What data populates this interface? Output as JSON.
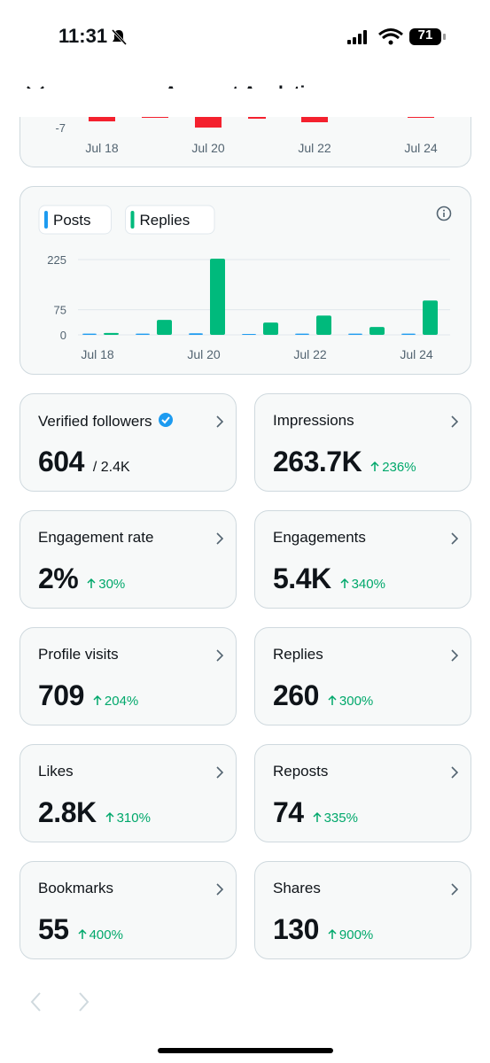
{
  "status_bar": {
    "time": "11:31",
    "battery": "71"
  },
  "header": {
    "title": "Account Analytics"
  },
  "top_chart": {
    "yticks": [
      -7
    ],
    "categories": [
      "Jul 18",
      "Jul 20",
      "Jul 22",
      "Jul 24"
    ]
  },
  "chart_data": {
    "type": "bar",
    "categories": [
      "Jul 18",
      null,
      "Jul 20",
      null,
      "Jul 22",
      null,
      "Jul 24"
    ],
    "series": [
      {
        "name": "Posts",
        "color": "#1d9bf0",
        "values": [
          1,
          1,
          2,
          0,
          1,
          1,
          1
        ]
      },
      {
        "name": "Replies",
        "color": "#00ba7c",
        "values": [
          3,
          42,
          225,
          34,
          55,
          21,
          100
        ]
      }
    ],
    "ylim": [
      0,
      225
    ],
    "yticks": [
      0,
      75,
      225
    ],
    "grid": true
  },
  "metrics": [
    {
      "label": "Verified followers",
      "value": "604",
      "total": "/ 2.4K"
    },
    {
      "label": "Impressions",
      "value": "263.7K",
      "change": "236%"
    },
    {
      "label": "Engagement rate",
      "value": "2%",
      "change": "30%"
    },
    {
      "label": "Engagements",
      "value": "5.4K",
      "change": "340%"
    },
    {
      "label": "Profile visits",
      "value": "709",
      "change": "204%"
    },
    {
      "label": "Replies",
      "value": "260",
      "change": "300%"
    },
    {
      "label": "Likes",
      "value": "2.8K",
      "change": "310%"
    },
    {
      "label": "Reposts",
      "value": "74",
      "change": "335%"
    },
    {
      "label": "Bookmarks",
      "value": "55",
      "change": "400%"
    },
    {
      "label": "Shares",
      "value": "130",
      "change": "900%"
    }
  ]
}
